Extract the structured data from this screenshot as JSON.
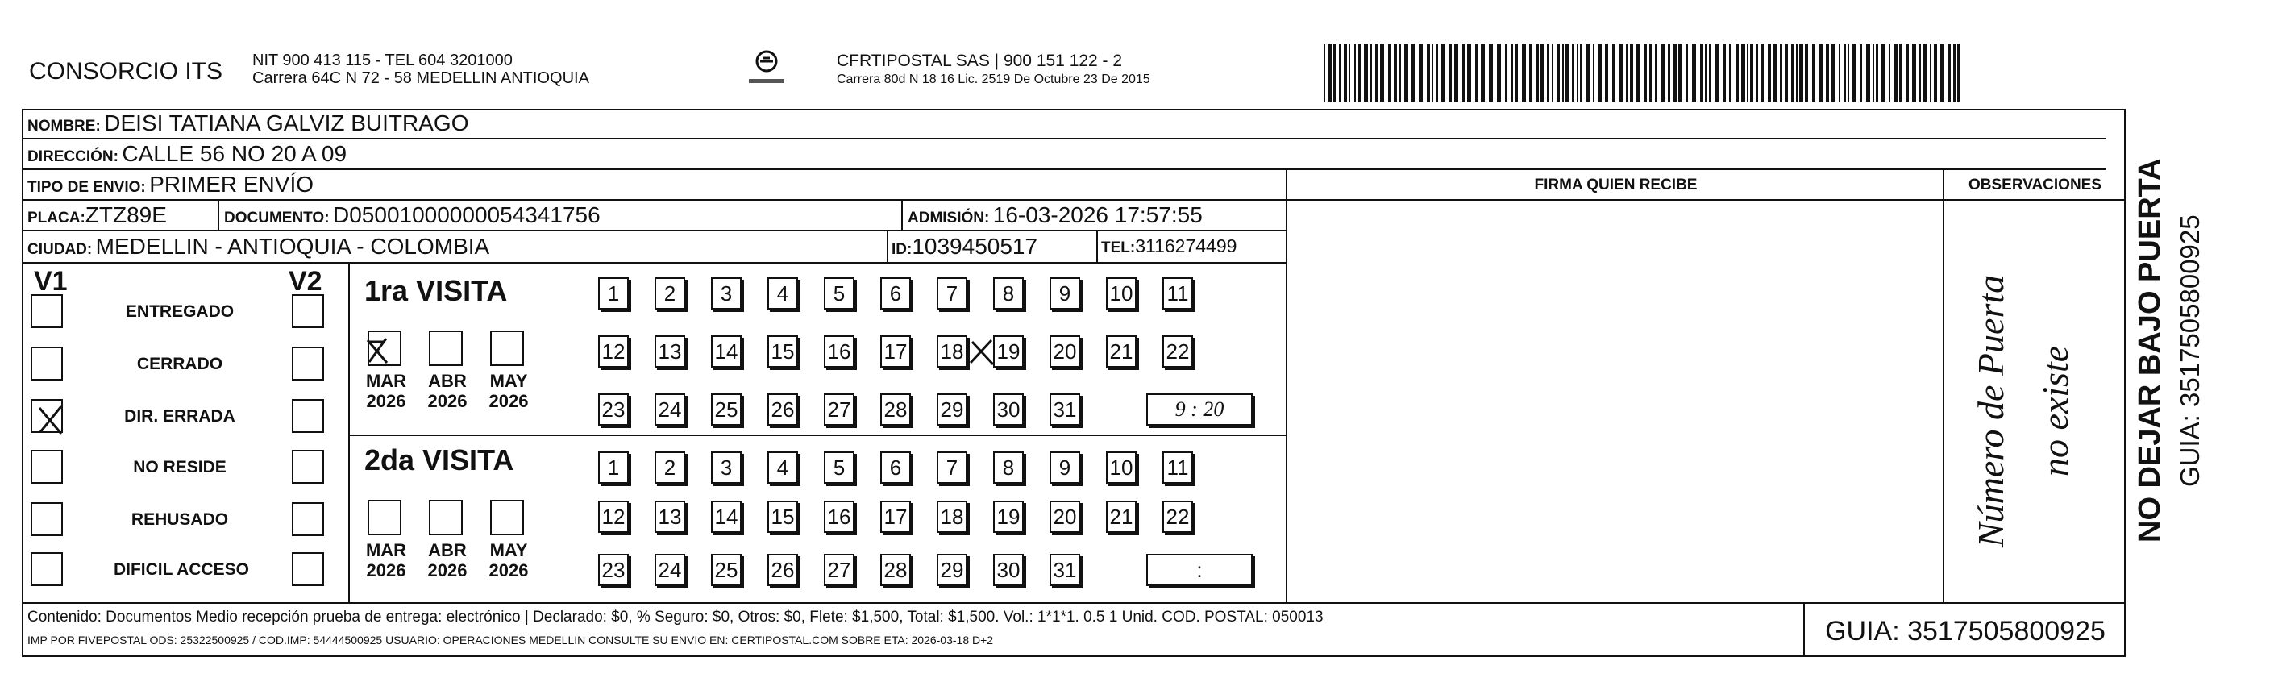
{
  "header": {
    "company": "CONSORCIO ITS",
    "company_info": [
      "NIT 900 413 115 - TEL 604 3201000",
      "Carrera 64C N 72 - 58 MEDELLIN ANTIOQUIA"
    ],
    "courier_name": "CFRTIPOSTAL SAS | 900 151 122 - 2",
    "courier_address": "Carrera 80d N 18 16  Lic. 2519 De Octubre 23 De 2015"
  },
  "fields": {
    "nombre": {
      "label": "NOMBRE:",
      "value": "DEISI TATIANA GALVIZ BUITRAGO"
    },
    "direccion": {
      "label": "DIRECCIÓN:",
      "value": "CALLE 56 NO 20 A 09"
    },
    "tipo": {
      "label": "TIPO DE ENVIO:",
      "value": "PRIMER ENVÍO"
    },
    "placa": {
      "label": "PLACA:",
      "value": "ZTZ89E"
    },
    "documento": {
      "label": "DOCUMENTO:",
      "value": "D05001000000054341756"
    },
    "admision": {
      "label": "ADMISIÓN:",
      "value": "16-03-2026 17:57:55"
    },
    "ciudad": {
      "label": "CIUDAD:",
      "value": "MEDELLIN - ANTIOQUIA - COLOMBIA"
    },
    "id": {
      "label": "ID:",
      "value": "1039450517"
    },
    "tel": {
      "label": "TEL:",
      "value": "3116274499"
    }
  },
  "columns": {
    "firma": "FIRMA QUIEN RECIBE",
    "observaciones": "OBSERVACIONES"
  },
  "status": {
    "v1": "V1",
    "v2": "V2",
    "options": [
      "ENTREGADO",
      "CERRADO",
      "DIR. ERRADA",
      "NO RESIDE",
      "REHUSADO",
      "DIFICIL ACCESO"
    ]
  },
  "visits": [
    {
      "title": "1ra VISITA",
      "months": [
        {
          "month": "MAR",
          "year": "2026"
        },
        {
          "month": "ABR",
          "year": "2026"
        },
        {
          "month": "MAY",
          "year": "2026"
        }
      ],
      "days": [
        1,
        2,
        3,
        4,
        5,
        6,
        7,
        8,
        9,
        10,
        11,
        12,
        13,
        14,
        15,
        16,
        17,
        18,
        19,
        20,
        21,
        22,
        23,
        24,
        25,
        26,
        27,
        28,
        29,
        30,
        31
      ],
      "time": "9 : 20"
    },
    {
      "title": "2da VISITA",
      "months": [
        {
          "month": "MAR",
          "year": "2026"
        },
        {
          "month": "ABR",
          "year": "2026"
        },
        {
          "month": "MAY",
          "year": "2026"
        }
      ],
      "days": [
        1,
        2,
        3,
        4,
        5,
        6,
        7,
        8,
        9,
        10,
        11,
        12,
        13,
        14,
        15,
        16,
        17,
        18,
        19,
        20,
        21,
        22,
        23,
        24,
        25,
        26,
        27,
        28,
        29,
        30,
        31
      ],
      "time": ":"
    }
  ],
  "observation_note": [
    "Número de Puerta",
    "no existe"
  ],
  "footer": {
    "content": "Contenido: Documentos Medio recepción prueba de entrega: electrónico | Declarado: $0, % Seguro: $0, Otros: $0, Flete: $1,500, Total: $1,500. Vol.: 1*1*1. 0.5  1 Unid. COD. POSTAL: 050013",
    "print_info": "IMP POR FIVEPOSTAL ODS: 25322500925 / COD.IMP: 54444500925 USUARIO: OPERACIONES MEDELLIN CONSULTE SU ENVIO EN: CERTIPOSTAL.COM SOBRE ETA: 2026-03-18 D+2",
    "guia": "GUIA: 3517505800925"
  },
  "side": {
    "warning": "NO DEJAR BAJO PUERTA",
    "guia": "GUIA: 3517505800925"
  }
}
